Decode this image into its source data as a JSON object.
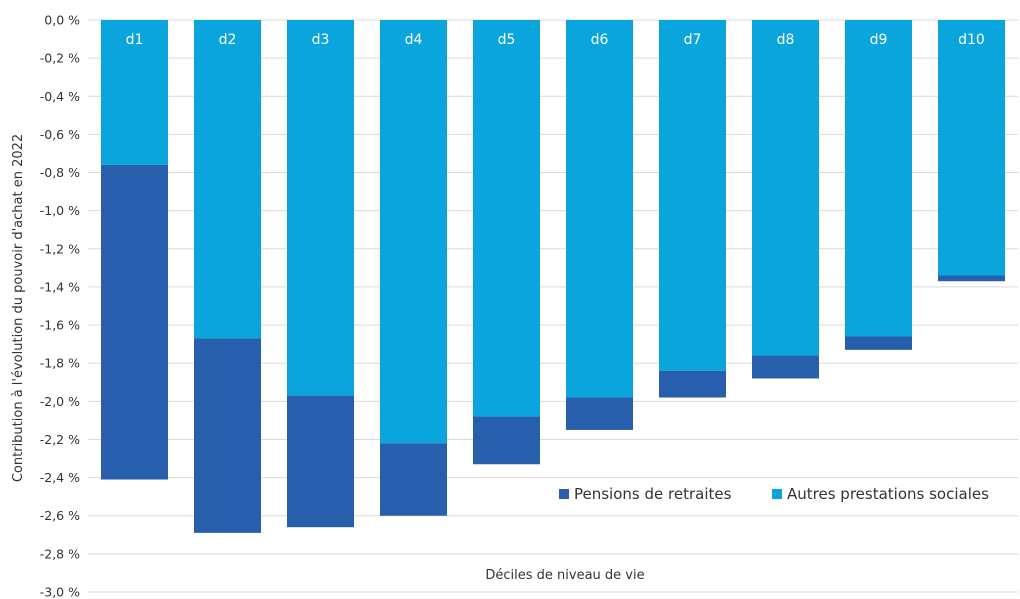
{
  "chart_data": {
    "type": "bar",
    "stacked": true,
    "categories": [
      "d1",
      "d2",
      "d3",
      "d4",
      "d5",
      "d6",
      "d7",
      "d8",
      "d9",
      "d10"
    ],
    "series": [
      {
        "name": "Autres prestations sociales",
        "color": "#0aa5dd",
        "values": [
          -0.76,
          -1.67,
          -1.97,
          -2.22,
          -2.08,
          -1.98,
          -1.84,
          -1.76,
          -1.66,
          -1.34
        ]
      },
      {
        "name": "Pensions de retraites",
        "color": "#275fad",
        "values": [
          -1.65,
          -1.02,
          -0.69,
          -0.38,
          -0.25,
          -0.17,
          -0.14,
          -0.12,
          -0.07,
          -0.03
        ]
      }
    ],
    "yticks": [
      "0,0 %",
      "-0,2 %",
      "-0,4 %",
      "-0,6 %",
      "-0,8 %",
      "-1,0 %",
      "-1,2 %",
      "-1,4 %",
      "-1,6 %",
      "-1,8 %",
      "-2,0 %",
      "-2,2 %",
      "-2,4 %",
      "-2,6 %",
      "-2,8 %",
      "-3,0 %"
    ],
    "ylim": [
      -3.0,
      0.0
    ],
    "xlabel": "Déciles de niveau de vie",
    "ylabel": "Contribution à l'évolution du pouvoir d'achat en 2022",
    "legend": [
      "Pensions de retraites",
      "Autres prestations sociales"
    ],
    "legend_position": "bottom-right",
    "grid": true,
    "gridColor": "#d9d9d9"
  }
}
